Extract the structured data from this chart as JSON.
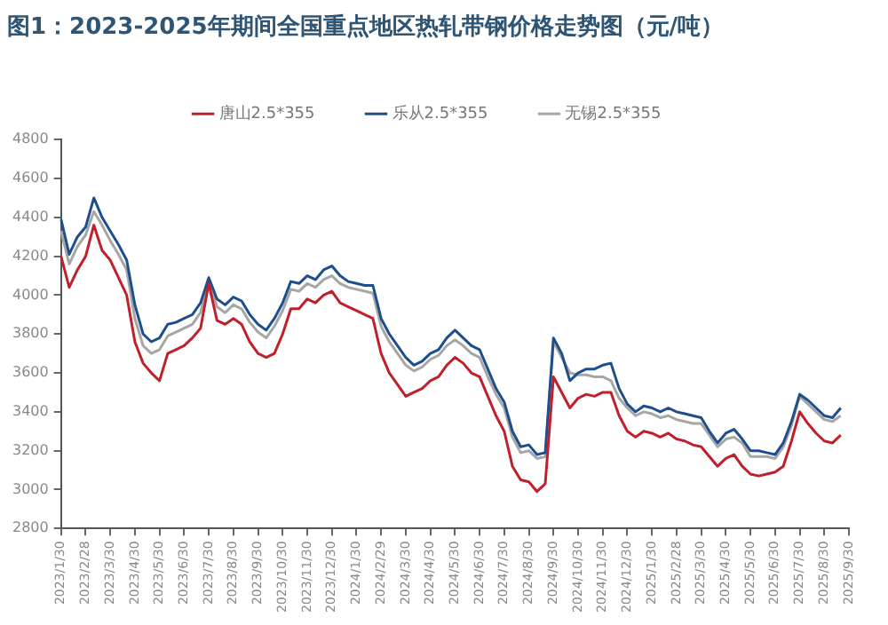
{
  "chart_data": {
    "type": "line",
    "title": "图1：2023-2025年期间全国重点地区热轧带钢价格走势图（元/吨）",
    "categories": [
      "2023/1/30",
      null,
      null,
      "2023/2/28",
      null,
      null,
      "2023/3/30",
      null,
      null,
      "2023/4/30",
      null,
      null,
      "2023/5/30",
      null,
      null,
      "2023/6/30",
      null,
      null,
      "2023/7/30",
      null,
      null,
      "2023/8/30",
      null,
      null,
      "2023/9/30",
      null,
      null,
      "2023/10/30",
      null,
      null,
      "2023/11/30",
      null,
      null,
      "2023/12/30",
      null,
      null,
      "2024/1/30",
      null,
      null,
      "2024/2/29",
      null,
      null,
      "2024/3/30",
      null,
      null,
      "2024/4/30",
      null,
      null,
      "2024/5/30",
      null,
      null,
      "2024/6/30",
      null,
      null,
      "2024/7/30",
      null,
      null,
      "2024/8/30",
      null,
      null,
      "2024/9/30",
      null,
      null,
      "2024/10/30",
      null,
      null,
      "2024/11/30",
      null,
      null,
      "2024/12/30",
      null,
      null,
      "2025/1/30",
      null,
      null,
      "2025/2/28",
      null,
      null,
      "2025/3/30",
      null,
      null,
      "2025/4/30",
      null,
      null,
      "2025/5/30",
      null,
      null,
      "2025/6/30",
      null,
      null,
      "2025/7/30",
      null,
      null,
      "2025/8/30",
      null,
      null,
      "2025/9/30"
    ],
    "series": [
      {
        "name": "唐山2.5*355",
        "color": "#c0202a",
        "values": [
          4200,
          4040,
          4130,
          4200,
          4360,
          4230,
          4180,
          4090,
          4000,
          3760,
          3650,
          3600,
          3560,
          3700,
          3720,
          3740,
          3780,
          3830,
          4060,
          3870,
          3850,
          3880,
          3850,
          3760,
          3700,
          3680,
          3700,
          3800,
          3930,
          3930,
          3980,
          3960,
          4000,
          4020,
          3960,
          3940,
          3920,
          3900,
          3880,
          3700,
          3600,
          3540,
          3480,
          3500,
          3520,
          3560,
          3580,
          3640,
          3680,
          3650,
          3600,
          3580,
          3480,
          3380,
          3300,
          3120,
          3050,
          3040,
          2990,
          3030,
          3580,
          3500,
          3420,
          3470,
          3490,
          3480,
          3500,
          3500,
          3380,
          3300,
          3270,
          3300,
          3290,
          3270,
          3290,
          3260,
          3250,
          3230,
          3220,
          3170,
          3120,
          3160,
          3180,
          3120,
          3080,
          3070,
          3080,
          3090,
          3120,
          3250,
          3400,
          3340,
          3290,
          3250,
          3240,
          3280,
          null
        ]
      },
      {
        "name": "乐从2.5*355",
        "color": "#1f4e8c",
        "values": [
          4390,
          4210,
          4300,
          4350,
          4500,
          4400,
          4330,
          4260,
          4180,
          3950,
          3800,
          3760,
          3780,
          3850,
          3860,
          3880,
          3900,
          3960,
          4090,
          3980,
          3950,
          3990,
          3970,
          3900,
          3850,
          3820,
          3880,
          3960,
          4070,
          4060,
          4100,
          4080,
          4130,
          4150,
          4100,
          4070,
          4060,
          4050,
          4050,
          3880,
          3800,
          3740,
          3680,
          3640,
          3660,
          3700,
          3720,
          3780,
          3820,
          3780,
          3740,
          3720,
          3620,
          3520,
          3450,
          3300,
          3220,
          3230,
          3180,
          3190,
          3780,
          3700,
          3560,
          3600,
          3620,
          3620,
          3640,
          3650,
          3520,
          3440,
          3400,
          3430,
          3420,
          3400,
          3420,
          3400,
          3390,
          3380,
          3370,
          3300,
          3240,
          3290,
          3310,
          3260,
          3200,
          3200,
          3190,
          3180,
          3240,
          3350,
          3490,
          3460,
          3420,
          3380,
          3370,
          3420,
          null
        ]
      },
      {
        "name": "无锡2.5*355",
        "color": "#a6a6a6",
        "values": [
          4330,
          4160,
          4250,
          4310,
          4430,
          4360,
          4280,
          4210,
          4130,
          3880,
          3740,
          3700,
          3720,
          3790,
          3810,
          3830,
          3850,
          3910,
          4080,
          3940,
          3910,
          3950,
          3930,
          3860,
          3810,
          3780,
          3840,
          3920,
          4030,
          4020,
          4060,
          4040,
          4080,
          4100,
          4060,
          4040,
          4030,
          4020,
          4010,
          3840,
          3760,
          3700,
          3640,
          3610,
          3630,
          3670,
          3690,
          3740,
          3770,
          3740,
          3700,
          3680,
          3580,
          3490,
          3420,
          3270,
          3190,
          3200,
          3160,
          3170,
          3760,
          3680,
          3600,
          3590,
          3590,
          3580,
          3580,
          3560,
          3470,
          3420,
          3380,
          3400,
          3390,
          3370,
          3380,
          3360,
          3350,
          3340,
          3340,
          3280,
          3220,
          3260,
          3270,
          3240,
          3170,
          3170,
          3170,
          3160,
          3220,
          3330,
          3480,
          3440,
          3400,
          3360,
          3350,
          3380,
          null
        ]
      }
    ],
    "ylim": [
      2800,
      4800
    ],
    "yticks": [
      2800,
      3000,
      3200,
      3400,
      3600,
      3800,
      4000,
      4200,
      4400,
      4600,
      4800
    ],
    "grid": false,
    "legend": "top",
    "marker": "none",
    "line_style": "solid"
  }
}
